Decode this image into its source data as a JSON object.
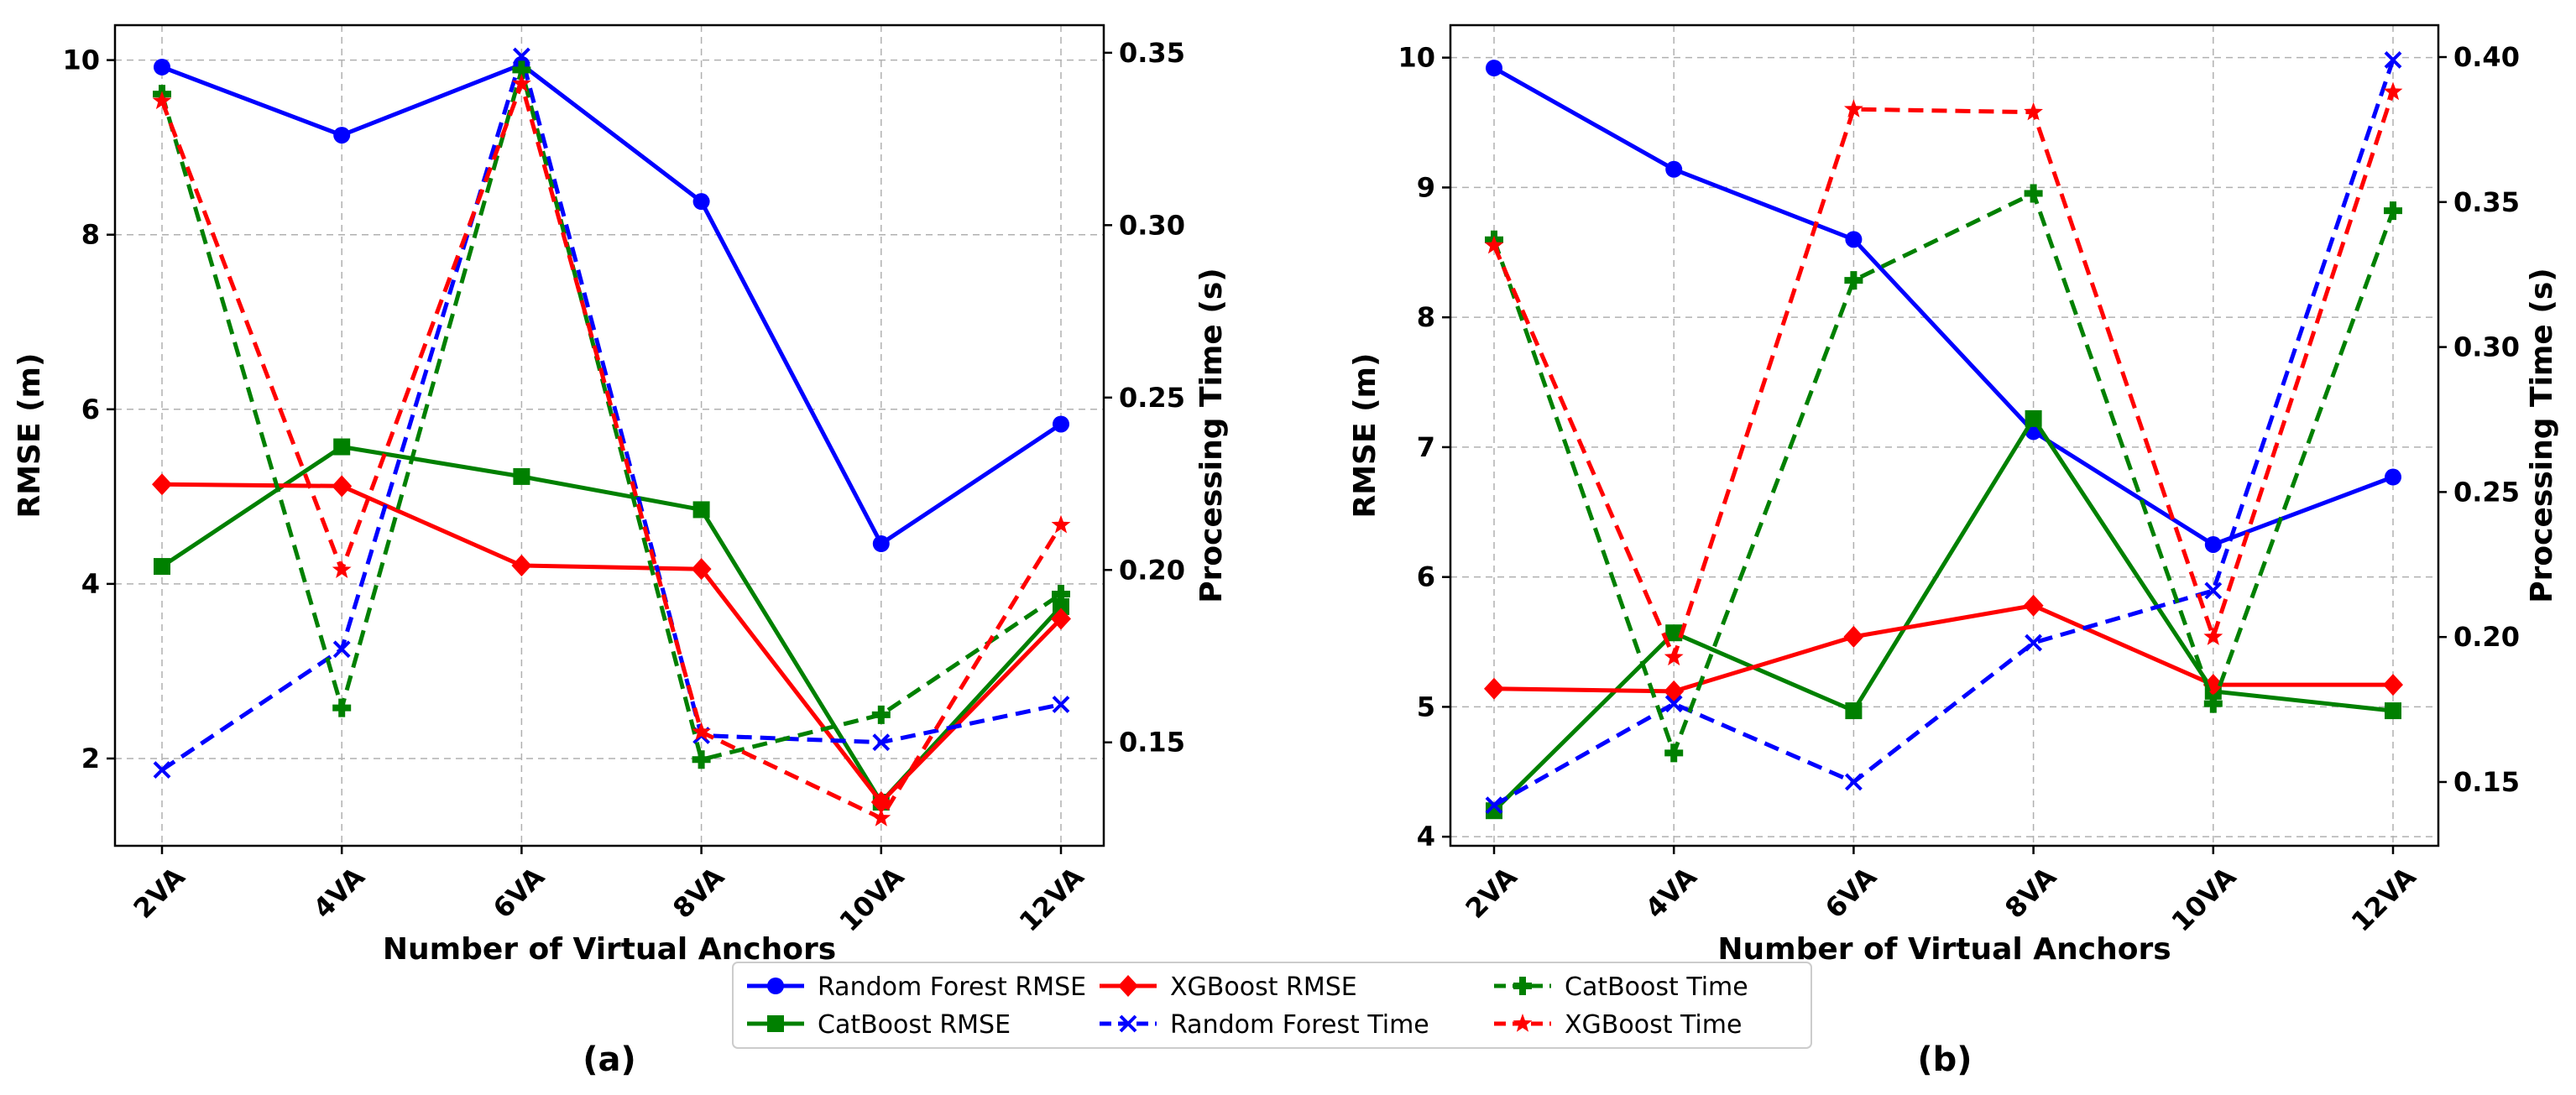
{
  "colors": {
    "blue": "#0000ff",
    "green": "#008000",
    "red": "#ff0000"
  },
  "legend": {
    "entries": [
      {
        "key": "rf_rmse",
        "label": "Random Forest RMSE",
        "color": "#0000ff",
        "dash": false,
        "marker": "circle"
      },
      {
        "key": "cb_rmse",
        "label": "CatBoost RMSE",
        "color": "#008000",
        "dash": false,
        "marker": "square"
      },
      {
        "key": "xgb_rmse",
        "label": "XGBoost RMSE",
        "color": "#ff0000",
        "dash": false,
        "marker": "diamond"
      },
      {
        "key": "rf_time",
        "label": "Random Forest Time",
        "color": "#0000ff",
        "dash": true,
        "marker": "x"
      },
      {
        "key": "cb_time",
        "label": "CatBoost Time",
        "color": "#008000",
        "dash": true,
        "marker": "plus"
      },
      {
        "key": "xgb_time",
        "label": "XGBoost Time",
        "color": "#ff0000",
        "dash": true,
        "marker": "star"
      }
    ]
  },
  "chart_data": [
    {
      "type": "line",
      "panel_label": "(a)",
      "xlabel": "Number of Virtual Anchors",
      "ylabel": "RMSE (m)",
      "y2label": "Processing Time (s)",
      "categories": [
        "2VA",
        "4VA",
        "6VA",
        "8VA",
        "10VA",
        "12VA"
      ],
      "ylim": [
        1.0,
        10.4
      ],
      "yticks": [
        2,
        4,
        6,
        8,
        10
      ],
      "ytick_labels": [
        "2",
        "4",
        "6",
        "8",
        "10"
      ],
      "y2lim": [
        0.12,
        0.358
      ],
      "y2ticks": [
        0.15,
        0.2,
        0.25,
        0.3,
        0.35
      ],
      "y2tick_labels": [
        "0.15",
        "0.20",
        "0.25",
        "0.30",
        "0.35"
      ],
      "series": [
        {
          "key": "rf_rmse",
          "name": "Random Forest RMSE",
          "axis": "left",
          "values": [
            9.92,
            9.14,
            9.95,
            8.38,
            4.46,
            5.83
          ]
        },
        {
          "key": "cb_rmse",
          "name": "CatBoost RMSE",
          "axis": "left",
          "values": [
            4.2,
            5.57,
            5.23,
            4.85,
            1.5,
            3.74
          ]
        },
        {
          "key": "xgb_rmse",
          "name": "XGBoost RMSE",
          "axis": "left",
          "values": [
            5.14,
            5.12,
            4.21,
            4.17,
            1.5,
            3.6
          ]
        },
        {
          "key": "rf_time",
          "name": "Random Forest Time",
          "axis": "right",
          "values": [
            0.142,
            0.177,
            0.349,
            0.152,
            0.15,
            0.161
          ]
        },
        {
          "key": "cb_time",
          "name": "CatBoost Time",
          "axis": "right",
          "values": [
            0.338,
            0.16,
            0.345,
            0.145,
            0.158,
            0.193
          ]
        },
        {
          "key": "xgb_time",
          "name": "XGBoost Time",
          "axis": "right",
          "values": [
            0.336,
            0.2,
            0.341,
            0.153,
            0.128,
            0.213
          ]
        }
      ]
    },
    {
      "type": "line",
      "panel_label": "(b)",
      "xlabel": "Number of Virtual Anchors",
      "ylabel": "RMSE (m)",
      "y2label": "Processing Time (s)",
      "categories": [
        "2VA",
        "4VA",
        "6VA",
        "8VA",
        "10VA",
        "12VA"
      ],
      "ylim": [
        3.93,
        10.25
      ],
      "yticks": [
        4,
        5,
        6,
        7,
        8,
        9,
        10
      ],
      "ytick_labels": [
        "4",
        "5",
        "6",
        "7",
        "8",
        "9",
        "10"
      ],
      "y2lim": [
        0.128,
        0.411
      ],
      "y2ticks": [
        0.15,
        0.2,
        0.25,
        0.3,
        0.35,
        0.4
      ],
      "y2tick_labels": [
        "0.15",
        "0.20",
        "0.25",
        "0.30",
        "0.35",
        "0.40"
      ],
      "series": [
        {
          "key": "rf_rmse",
          "name": "Random Forest RMSE",
          "axis": "left",
          "values": [
            9.92,
            9.14,
            8.6,
            7.12,
            6.25,
            6.77
          ]
        },
        {
          "key": "cb_rmse",
          "name": "CatBoost RMSE",
          "axis": "left",
          "values": [
            4.2,
            5.57,
            4.97,
            7.22,
            5.12,
            4.97
          ]
        },
        {
          "key": "xgb_rmse",
          "name": "XGBoost RMSE",
          "axis": "left",
          "values": [
            5.14,
            5.12,
            5.54,
            5.78,
            5.17,
            5.17
          ]
        },
        {
          "key": "rf_time",
          "name": "Random Forest Time",
          "axis": "right",
          "values": [
            0.142,
            0.177,
            0.15,
            0.198,
            0.216,
            0.399
          ]
        },
        {
          "key": "cb_time",
          "name": "CatBoost Time",
          "axis": "right",
          "values": [
            0.337,
            0.16,
            0.323,
            0.353,
            0.177,
            0.347
          ]
        },
        {
          "key": "xgb_time",
          "name": "XGBoost Time",
          "axis": "right",
          "values": [
            0.335,
            0.193,
            0.382,
            0.381,
            0.2,
            0.388
          ]
        }
      ]
    }
  ]
}
